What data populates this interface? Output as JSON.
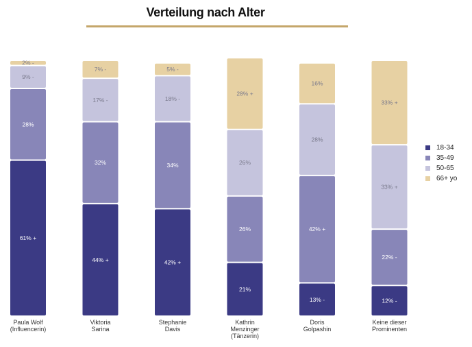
{
  "title": "Verteilung nach Alter",
  "chart_data": {
    "type": "bar",
    "stacked": true,
    "orientation": "vertical",
    "categories": [
      [
        "Paula Wolf",
        "(Influencerin)"
      ],
      [
        "Viktoria",
        "Sarina"
      ],
      [
        "Stephanie",
        "Davis"
      ],
      [
        "Kathrin",
        "Menzinger",
        "(Tänzerin)"
      ],
      [
        "Doris",
        "Golpashin"
      ],
      [
        "Keine dieser",
        "Prominenten"
      ]
    ],
    "series": [
      {
        "name": "18-34",
        "color": "#3b3a84",
        "values": [
          61,
          44,
          42,
          21,
          13,
          12
        ],
        "labels": [
          "61% +",
          "44% +",
          "42% +",
          "21%",
          "13% -",
          "12% -"
        ]
      },
      {
        "name": "35-49",
        "color": "#8886b8",
        "values": [
          28,
          32,
          34,
          26,
          42,
          22
        ],
        "labels": [
          "28%",
          "32%",
          "34%",
          "26%",
          "42% +",
          "22% -"
        ]
      },
      {
        "name": "50-65",
        "color": "#c5c4dd",
        "values": [
          9,
          17,
          18,
          26,
          28,
          33
        ],
        "labels": [
          "9% -",
          "17% -",
          "18% -",
          "26%",
          "28%",
          "33% +"
        ]
      },
      {
        "name": "66+ yo",
        "color": "#e7d1a3",
        "values": [
          2,
          7,
          5,
          28,
          16,
          33
        ],
        "labels": [
          "2% -",
          "7% -",
          "5% -",
          "28% +",
          "16%",
          "33% +"
        ]
      }
    ],
    "ylim": [
      0,
      100
    ],
    "legend_position": "right",
    "grid": false
  }
}
